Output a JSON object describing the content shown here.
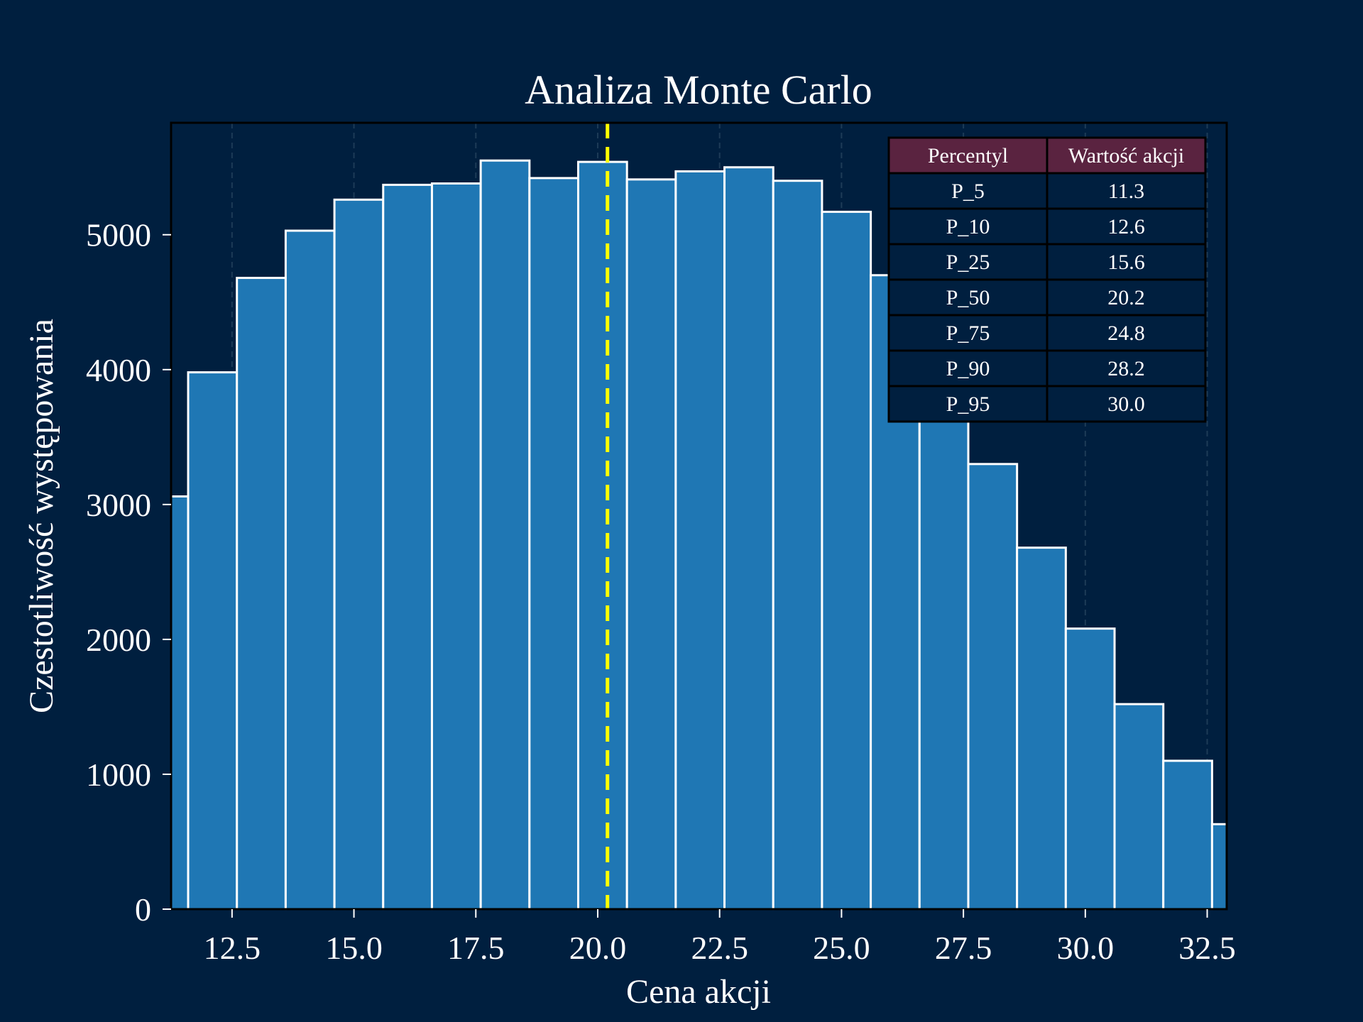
{
  "chart_data": {
    "type": "bar",
    "subtype": "histogram",
    "title": "Analiza Monte Carlo",
    "xlabel": "Cena akcji",
    "ylabel": "Czestotliwość występowania",
    "xlim": [
      11.25,
      32.9
    ],
    "ylim": [
      0,
      5830
    ],
    "x_ticks": [
      "12.5",
      "15.0",
      "17.5",
      "20.0",
      "22.5",
      "25.0",
      "27.5",
      "30.0",
      "32.5"
    ],
    "y_ticks": [
      "0",
      "1000",
      "2000",
      "3000",
      "4000",
      "5000"
    ],
    "grid": {
      "x": true,
      "y": false,
      "style": "dashed"
    },
    "bin_width": 1.0,
    "bins": [
      {
        "start": 10.6,
        "end": 11.6,
        "count": 3060
      },
      {
        "start": 11.6,
        "end": 12.6,
        "count": 3980
      },
      {
        "start": 12.6,
        "end": 13.6,
        "count": 4680
      },
      {
        "start": 13.6,
        "end": 14.6,
        "count": 5030
      },
      {
        "start": 14.6,
        "end": 15.6,
        "count": 5260
      },
      {
        "start": 15.6,
        "end": 16.6,
        "count": 5370
      },
      {
        "start": 16.6,
        "end": 17.6,
        "count": 5380
      },
      {
        "start": 17.6,
        "end": 18.6,
        "count": 5550
      },
      {
        "start": 18.6,
        "end": 19.6,
        "count": 5420
      },
      {
        "start": 19.6,
        "end": 20.6,
        "count": 5540
      },
      {
        "start": 20.6,
        "end": 21.6,
        "count": 5410
      },
      {
        "start": 21.6,
        "end": 22.6,
        "count": 5470
      },
      {
        "start": 22.6,
        "end": 23.6,
        "count": 5500
      },
      {
        "start": 23.6,
        "end": 24.6,
        "count": 5400
      },
      {
        "start": 24.6,
        "end": 25.6,
        "count": 5170
      },
      {
        "start": 25.6,
        "end": 26.6,
        "count": 4700
      },
      {
        "start": 26.6,
        "end": 27.6,
        "count": 4050
      },
      {
        "start": 27.6,
        "end": 28.6,
        "count": 3300
      },
      {
        "start": 28.6,
        "end": 29.6,
        "count": 2680
      },
      {
        "start": 29.6,
        "end": 30.6,
        "count": 2080
      },
      {
        "start": 30.6,
        "end": 31.6,
        "count": 1520
      },
      {
        "start": 31.6,
        "end": 32.6,
        "count": 1100
      },
      {
        "start": 32.6,
        "end": 33.6,
        "count": 630
      }
    ],
    "reference_line": {
      "x": 20.2
    },
    "colors": {
      "background": "#001f3f",
      "bar_fill": "#1f77b4",
      "bar_edge": "#ffffff",
      "reference_line": "#ffff00",
      "table_header": "#5a2340",
      "table_body": "#001f3f",
      "table_border": "#000000",
      "grid": "#1d3b57"
    },
    "table": {
      "position": "top-right",
      "headers": [
        "Percentyl",
        "Wartość akcji"
      ],
      "rows": [
        [
          "P_5",
          "11.3"
        ],
        [
          "P_10",
          "12.6"
        ],
        [
          "P_25",
          "15.6"
        ],
        [
          "P_50",
          "20.2"
        ],
        [
          "P_75",
          "24.8"
        ],
        [
          "P_90",
          "28.2"
        ],
        [
          "P_95",
          "30.0"
        ]
      ]
    }
  }
}
